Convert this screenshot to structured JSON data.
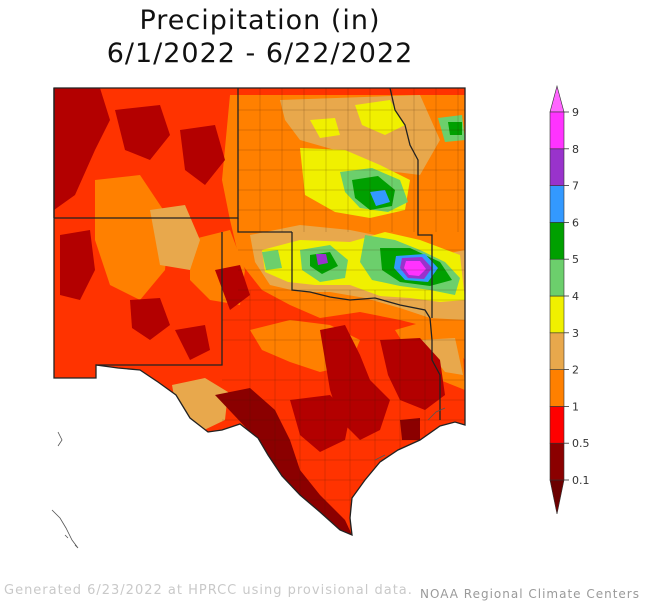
{
  "title": {
    "line1": "Precipitation (in)",
    "line2": "6/1/2022 - 6/22/2022"
  },
  "legend": {
    "ticks": [
      "0.1",
      "0.5",
      "1",
      "2",
      "3",
      "4",
      "5",
      "6",
      "7",
      "8",
      "9"
    ],
    "bins": [
      {
        "color": "#8b0000"
      },
      {
        "color": "#ff0000"
      },
      {
        "color": "#ff8000"
      },
      {
        "color": "#e8a84c"
      },
      {
        "color": "#f0f000"
      },
      {
        "color": "#6ccf6c"
      },
      {
        "color": "#00a000"
      },
      {
        "color": "#3399ff"
      },
      {
        "color": "#9933cc"
      },
      {
        "color": "#ff33ff"
      }
    ],
    "low_arrow_color": "#6b0000",
    "high_arrow_color": "#ff66ff"
  },
  "footer": {
    "generated": "Generated 6/23/2022 at HPRCC using provisional data.",
    "credit": "NOAA Regional Climate Centers"
  }
}
